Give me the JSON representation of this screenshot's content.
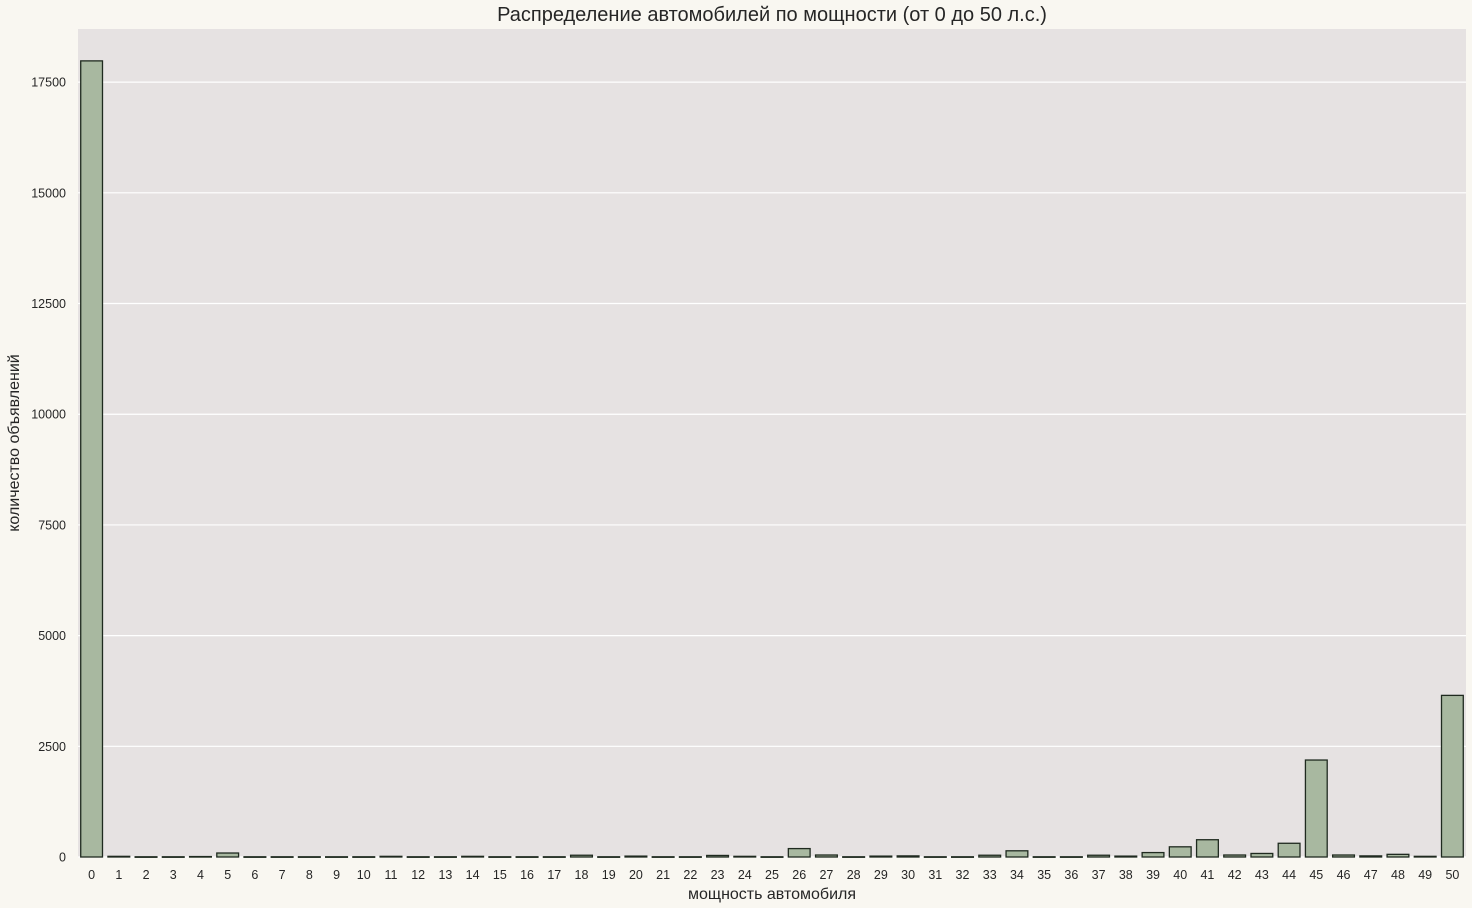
{
  "chart_data": {
    "type": "bar",
    "title": "Распределение автомобилей по мощности (от 0 до 50 л.с.)",
    "xlabel": "мощность автомобиля",
    "ylabel": "количество объявлений",
    "categories": [
      "0",
      "1",
      "2",
      "3",
      "4",
      "5",
      "6",
      "7",
      "8",
      "9",
      "10",
      "11",
      "12",
      "13",
      "14",
      "15",
      "16",
      "17",
      "18",
      "19",
      "20",
      "21",
      "22",
      "23",
      "24",
      "25",
      "26",
      "27",
      "28",
      "29",
      "30",
      "31",
      "32",
      "33",
      "34",
      "35",
      "36",
      "37",
      "38",
      "39",
      "40",
      "41",
      "42",
      "43",
      "44",
      "45",
      "46",
      "47",
      "48",
      "49",
      "50"
    ],
    "values": [
      17980,
      15,
      5,
      5,
      10,
      90,
      5,
      5,
      5,
      5,
      5,
      15,
      5,
      5,
      15,
      5,
      5,
      5,
      40,
      5,
      20,
      5,
      5,
      35,
      15,
      5,
      190,
      45,
      5,
      20,
      25,
      5,
      5,
      40,
      140,
      5,
      5,
      40,
      20,
      100,
      230,
      390,
      45,
      80,
      310,
      2190,
      45,
      25,
      60,
      15,
      3650
    ],
    "ylim": [
      0,
      18700
    ],
    "yticks": [
      0,
      2500,
      5000,
      7500,
      10000,
      12500,
      15000,
      17500
    ],
    "grid": true,
    "colors": {
      "bar_fill": "#a8b8a0",
      "bar_edge": "#1f2a1f",
      "plot_background": "#e6e2e2",
      "page_background": "#f9f7f1",
      "grid": "#ffffff"
    }
  }
}
